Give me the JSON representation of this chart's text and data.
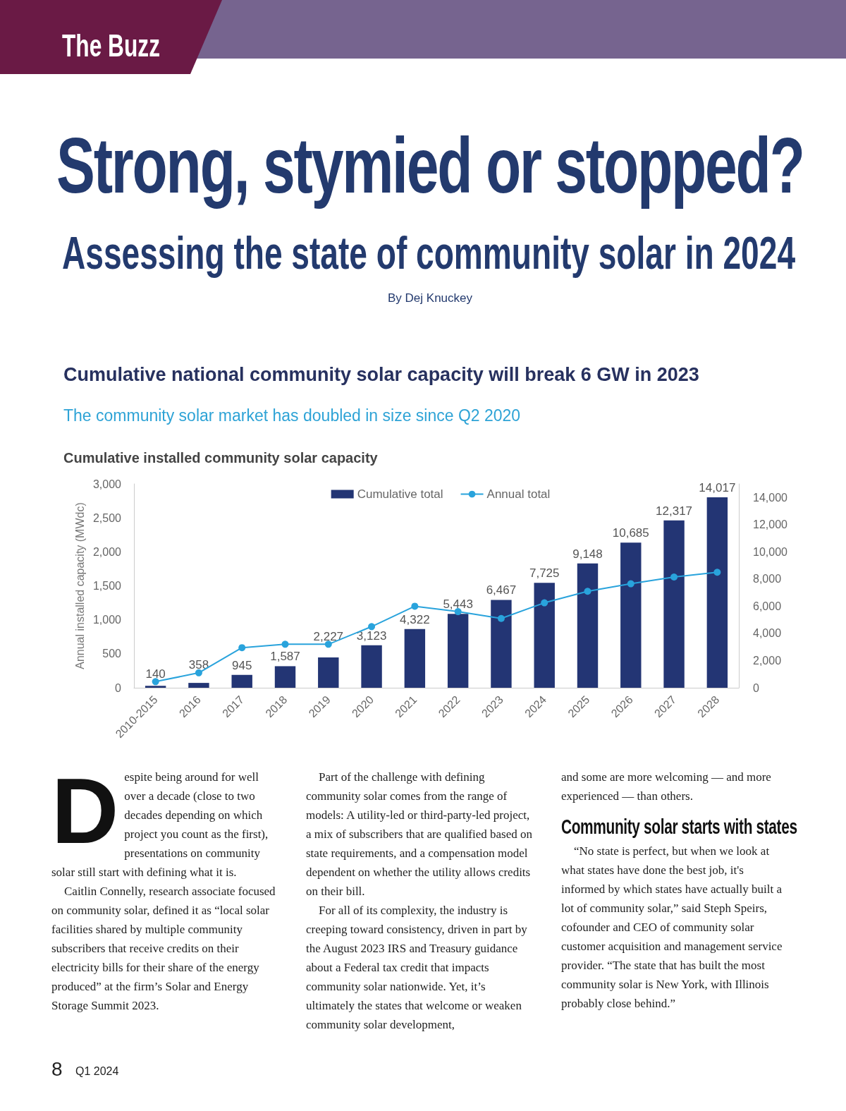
{
  "chart_data": {
    "type": "bar",
    "title": "Cumulative national community solar capacity will break 6 GW in 2023",
    "subtitle": "The community solar market has doubled in size since Q2 2020",
    "ylabel": "Annual installed capacity (MWdc)",
    "annotations": [
      "The Buzz",
      "Strong, stymied or stopped?",
      "Assessing the state of community solar in 2024",
      "By Dej Knuckey",
      "Cumulative installed community solar capacity",
      "Despite being around for well over a decade (close to two decades depending on which project you count as the first), presentations on community solar still start with defining what it is.",
      "Caitlin Connelly, research associate focused on community solar, defined it as “local solar facilities shared by multiple community subscribers that receive credits on their electricity bills for their share of the energy produced” at the firm’s Solar and Energy Storage Summit 2023.",
      "Part of the challenge with defining community solar comes from the range of models: A utility-led or third-party-led project, a mix of subscribers that are qualified based on state requirements, and a compensation model dependent on whether the utility allows credits on their bill.",
      "For all of its complexity, the industry is creeping toward consistency, driven in part by the August 2023 IRS and Treasury guidance about a Federal tax credit that impacts community solar nationwide. Yet, it’s ultimately the states that welcome or weaken community solar development,",
      "and some are more welcoming — and more experienced — than others.",
      "Community solar starts with states",
      "“No state is perfect, but when we look at what states have done the best job, it's informed by which states have actually built a lot of community solar,” said Steph Speirs, cofounder and CEO of community solar customer acquisition and management service provider. “The state that has built the most community solar is New York, with Illinois probably close behind.”",
      "8",
      "Q1 2024"
    ],
    "categories": [
      "2010-2015",
      "2016",
      "2017",
      "2018",
      "2019",
      "2020",
      "2021",
      "2022",
      "2023",
      "2024",
      "2025",
      "2026",
      "2027",
      "2028"
    ],
    "series": [
      {
        "name": "Cumulative total",
        "axis": "y2",
        "color": "#233574",
        "values": [
          140,
          358,
          945,
          1587,
          2227,
          3123,
          4322,
          5443,
          6467,
          7725,
          9148,
          10685,
          12317,
          14017
        ],
        "value_labels": [
          "140",
          "358",
          "945",
          "1,587",
          "2,227",
          "3,123",
          "4,322",
          "5,443",
          "6,467",
          "7,725",
          "9,148",
          "10,685",
          "12,317",
          "14,017"
        ]
      },
      {
        "name": "Annual total",
        "type": "line",
        "color": "#29a3dc",
        "marker": "circle",
        "values": [
          90,
          220,
          590,
          640,
          640,
          900,
          1200,
          1120,
          1020,
          1250,
          1420,
          1530,
          1630,
          1700
        ]
      }
    ],
    "ylim": [
      0,
      3000
    ],
    "yticks": [
      0,
      500,
      {
        "value": 1000,
        "label": "1,000"
      },
      {
        "value": 1500,
        "label": "1,500"
      },
      {
        "value": 2000,
        "label": "2,000"
      },
      {
        "value": 2500,
        "label": "2,500"
      },
      {
        "value": 3000,
        "label": "3,000"
      }
    ],
    "y2lim": [
      0,
      15000
    ],
    "y2ticks": [
      0,
      {
        "value": 2000,
        "label": "2,000"
      },
      {
        "value": 4000,
        "label": "4,000"
      },
      {
        "value": 6000,
        "label": "6,000"
      },
      {
        "value": 8000,
        "label": "8,000"
      },
      {
        "value": 10000,
        "label": "10,000"
      },
      {
        "value": 12000,
        "label": "12,000"
      },
      {
        "value": 14000,
        "label": "14,000"
      }
    ],
    "grid": false,
    "legend": "top"
  }
}
